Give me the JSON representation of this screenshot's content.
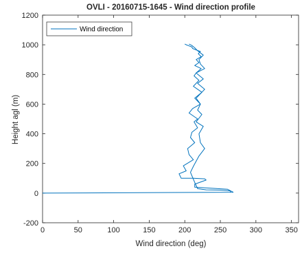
{
  "chart_data": {
    "type": "line",
    "title": "OVLI -  20160715-1645 - Wind direction profile",
    "xlabel": "Wind direction (deg)",
    "ylabel": "Height agl (m)",
    "xlim": [
      0,
      360
    ],
    "ylim": [
      -200,
      1200
    ],
    "xticks": [
      0,
      50,
      100,
      150,
      200,
      250,
      300,
      350
    ],
    "yticks": [
      -200,
      0,
      200,
      400,
      600,
      800,
      1000,
      1200
    ],
    "grid": false,
    "legend": {
      "position": "top-left"
    },
    "colors": {
      "series": "#0072BD",
      "axes": "#262626"
    },
    "series": [
      {
        "name": "Wind direction",
        "x": [
          0,
          268,
          260,
          214,
          214,
          222,
          230,
          228,
          212,
          195,
          192,
          202,
          198,
          212,
          206,
          204,
          214,
          208,
          210,
          218,
          213,
          218,
          206,
          211,
          222,
          216,
          224,
          212,
          220,
          213,
          216,
          223,
          214,
          220,
          216,
          223,
          219,
          222,
          216,
          211,
          210,
          206,
          202,
          200
        ],
        "y": [
          0,
          6,
          26,
          40,
          60,
          74,
          88,
          96,
          100,
          100,
          130,
          150,
          184,
          225,
          260,
          300,
          340,
          375,
          410,
          440,
          480,
          500,
          540,
          570,
          600,
          640,
          680,
          720,
          760,
          790,
          810,
          840,
          860,
          880,
          900,
          920,
          940,
          955,
          965,
          975,
          985,
          993,
          1000,
          1005
        ]
      },
      {
        "name": "",
        "x": [
          264,
          264,
          250,
          230,
          218,
          215,
          208,
          212,
          220,
          228,
          222,
          220,
          226,
          216,
          224,
          218,
          222,
          214,
          224,
          228,
          218,
          226,
          216,
          228,
          222,
          220,
          226,
          218,
          214,
          210,
          206
        ],
        "y": [
          4,
          15,
          20,
          22,
          30,
          60,
          140,
          180,
          250,
          300,
          340,
          400,
          450,
          480,
          530,
          560,
          600,
          640,
          680,
          700,
          740,
          770,
          810,
          840,
          870,
          900,
          930,
          960,
          980,
          995,
          1005
        ]
      }
    ]
  }
}
